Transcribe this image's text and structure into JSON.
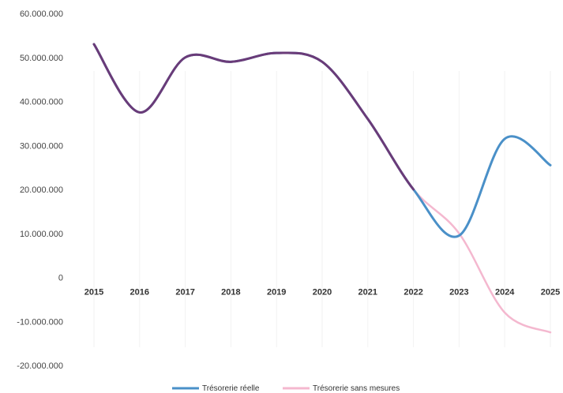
{
  "chart_data": {
    "type": "line",
    "x": [
      "2015",
      "2016",
      "2017",
      "2018",
      "2019",
      "2020",
      "2021",
      "2022",
      "2023",
      "2024",
      "2025"
    ],
    "y_ticks": [
      "60.000.000",
      "50.000.000",
      "40.000.000",
      "30.000.000",
      "20.000.000",
      "10.000.000",
      "0",
      "-10.000.000",
      "-20.000.000"
    ],
    "ylim": [
      -20000000,
      60000000
    ],
    "grid": "vertical",
    "legend_position": "bottom",
    "series": [
      {
        "name": "Trésorerie réelle",
        "color": "#4a90c8",
        "values": [
          53000000,
          37500000,
          50000000,
          49000000,
          51000000,
          49000000,
          36000000,
          20000000,
          9500000,
          31500000,
          25500000
        ]
      },
      {
        "name": "Trésorerie sans mesures",
        "color": "#f4b8cf",
        "values": [
          53000000,
          37500000,
          50000000,
          49000000,
          51000000,
          49000000,
          36000000,
          20000000,
          10000000,
          -8000000,
          -12500000
        ]
      }
    ],
    "overlap_color": "#6a3b78"
  }
}
